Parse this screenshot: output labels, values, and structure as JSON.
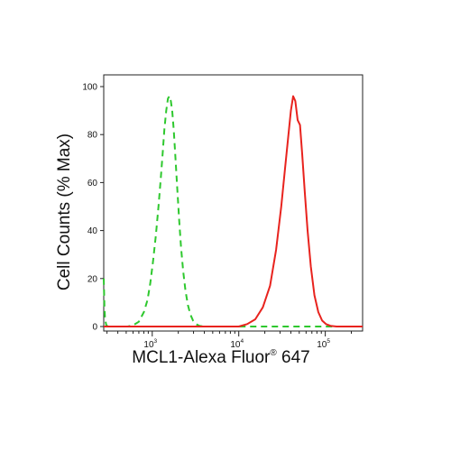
{
  "chart_data": {
    "type": "line",
    "title": "",
    "xlabel": {
      "main": "MCL1-Alexa Fluor",
      "sup": "®",
      "tail": " 647"
    },
    "ylabel": "Cell Counts (% Max)",
    "x_scale": "log",
    "xlim": [
      275,
      270000
    ],
    "ylim": [
      0,
      100
    ],
    "x_major_ticks": [
      {
        "value": 1000,
        "base": "10",
        "exp": "3"
      },
      {
        "value": 10000,
        "base": "10",
        "exp": "4"
      },
      {
        "value": 100000,
        "base": "10",
        "exp": "5"
      }
    ],
    "y_ticks": [
      0,
      20,
      40,
      60,
      80,
      100
    ],
    "grid": false,
    "legend": "none",
    "series": [
      {
        "color": "#2ec82e",
        "style": "dashed",
        "x": [
          275,
          280,
          285,
          295,
          310,
          330,
          360,
          400,
          450,
          520,
          600,
          700,
          800,
          880,
          950,
          1020,
          1100,
          1180,
          1250,
          1320,
          1380,
          1450,
          1520,
          1580,
          1640,
          1700,
          1770,
          1850,
          1950,
          2050,
          2150,
          2280,
          2420,
          2580,
          2760,
          2960,
          3200,
          3500,
          3900,
          4500,
          6000,
          10000,
          50000,
          270000
        ],
        "y": [
          20,
          8,
          3,
          0.5,
          0,
          0,
          0,
          0,
          0,
          0,
          0.5,
          2,
          6,
          11,
          18,
          27,
          38,
          50,
          61,
          72,
          82,
          90,
          95,
          96,
          94,
          90,
          82,
          71,
          57,
          44,
          33,
          23,
          15,
          9,
          5,
          2.5,
          1,
          0.3,
          0,
          0,
          0,
          0,
          0,
          0
        ]
      },
      {
        "color": "#e8231e",
        "style": "solid",
        "x": [
          275,
          10000,
          12500,
          15500,
          19000,
          23000,
          27000,
          31000,
          34500,
          37500,
          40000,
          42500,
          45000,
          48000,
          51000,
          54000,
          58000,
          62500,
          68000,
          75000,
          83000,
          92000,
          102000,
          115000,
          135000,
          270000
        ],
        "y": [
          0,
          0,
          1,
          3,
          8,
          17,
          32,
          50,
          67,
          80,
          90,
          96,
          94,
          86,
          84,
          72,
          56,
          40,
          25,
          13,
          6,
          2.5,
          1,
          0.3,
          0,
          0
        ]
      }
    ]
  }
}
